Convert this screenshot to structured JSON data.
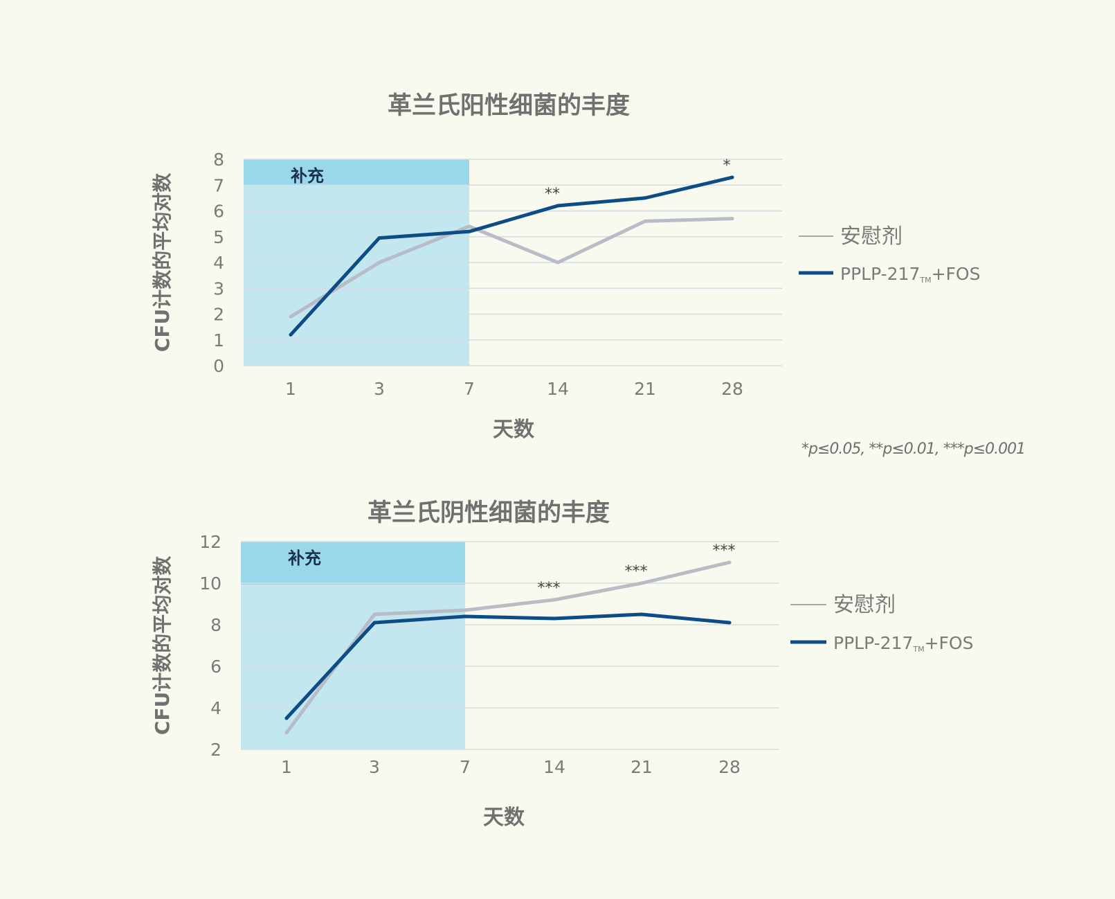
{
  "colors": {
    "background": "#f8f9ef",
    "placebo": "#b8bcc7",
    "treatment": "#0e4c86",
    "shade_light": "#c2e7ef",
    "shade_dark": "#98d8ea",
    "title_text": "#707070",
    "axis_text": "#7a7a7a",
    "grid": "#d3dde3"
  },
  "footnote": "*p≤0.05, **p≤0.01, ***p≤0.001",
  "chart_data": [
    {
      "type": "line",
      "title": "革兰氏阳性细菌的丰度",
      "xlabel": "天数",
      "ylabel": "CFU计数的平均对数",
      "categories": [
        "1",
        "3",
        "7",
        "14",
        "21",
        "28"
      ],
      "ylim": [
        0,
        8
      ],
      "yticks": [
        0,
        1,
        2,
        3,
        4,
        5,
        6,
        7,
        8
      ],
      "grid": true,
      "legend_position": "right",
      "supplement_label": "补充",
      "supplement_range": [
        "1",
        "7"
      ],
      "series": [
        {
          "name": "安慰剂",
          "values": [
            1.9,
            4.0,
            5.4,
            4.0,
            5.6,
            5.7
          ]
        },
        {
          "name": "PPLP-217",
          "name_sub": "TM",
          "name_suffix": "+FOS",
          "values": [
            1.2,
            4.95,
            5.2,
            6.2,
            6.5,
            7.3
          ]
        }
      ],
      "annotations": [
        {
          "category": "14",
          "text": "**"
        },
        {
          "category": "28",
          "text": "*"
        }
      ]
    },
    {
      "type": "line",
      "title": "革兰氏阴性细菌的丰度",
      "xlabel": "天数",
      "ylabel": "CFU计数的平均对数",
      "categories": [
        "1",
        "3",
        "7",
        "14",
        "21",
        "28"
      ],
      "ylim": [
        2,
        12
      ],
      "yticks": [
        2,
        4,
        6,
        8,
        10,
        12
      ],
      "grid": true,
      "legend_position": "right",
      "supplement_label": "补充",
      "supplement_range": [
        "1",
        "7"
      ],
      "series": [
        {
          "name": "安慰剂",
          "values": [
            2.8,
            8.5,
            8.7,
            9.2,
            10.0,
            11.0
          ]
        },
        {
          "name": "PPLP-217",
          "name_sub": "TM",
          "name_suffix": "+FOS",
          "values": [
            3.5,
            8.1,
            8.4,
            8.3,
            8.5,
            8.1
          ]
        }
      ],
      "annotations": [
        {
          "category": "14",
          "text": "***"
        },
        {
          "category": "21",
          "text": "***"
        },
        {
          "category": "28",
          "text": "***"
        }
      ]
    }
  ]
}
